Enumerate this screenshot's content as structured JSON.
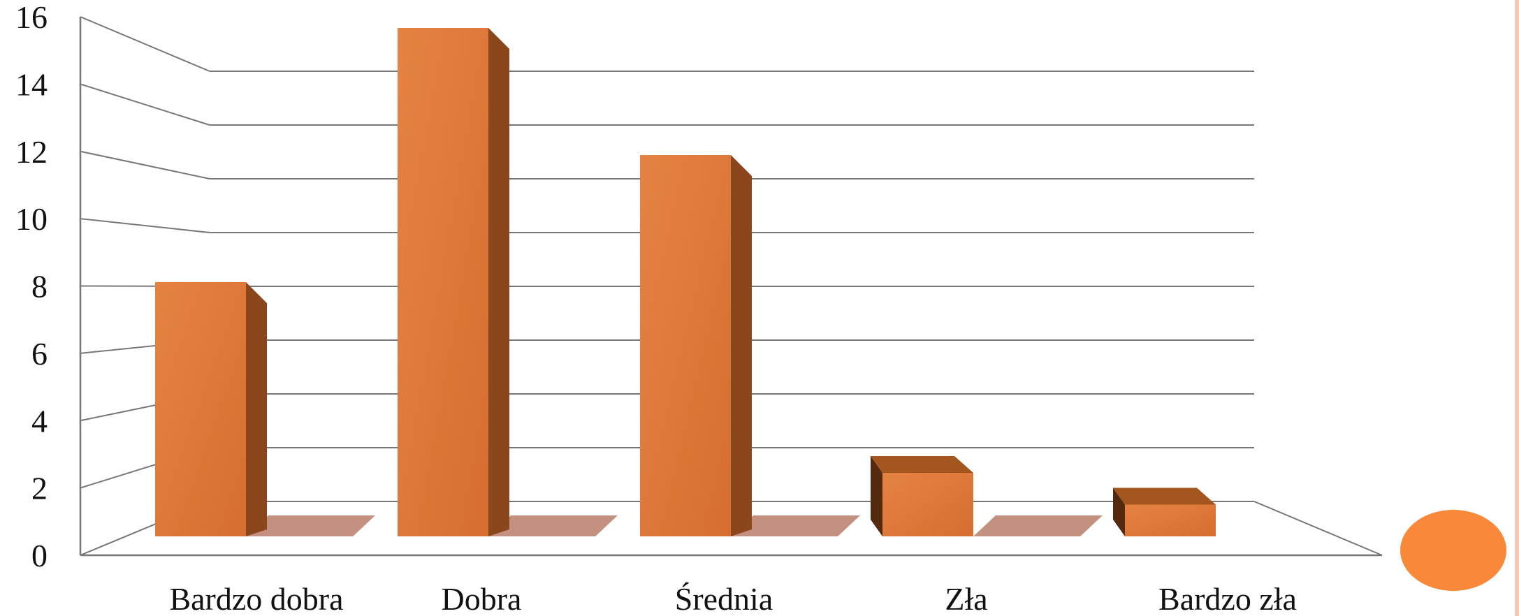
{
  "colors": {
    "bar_front": "#D56E30",
    "bar_front_light": "#E58343",
    "bar_side": "#8A471C",
    "bar_top": "#A4561F",
    "bar_side_left": "#55290E",
    "shadow": "#C49080",
    "grid": "#777777",
    "circle": "#FA883A",
    "stripe": "#F2C7B6"
  },
  "chart_data": {
    "type": "bar",
    "style": "3d-column",
    "categories": [
      "Bardzo dobra",
      "Dobra",
      "Średnia",
      "Zła",
      "Bardzo zła"
    ],
    "values": [
      8,
      16,
      12,
      2,
      1
    ],
    "title": "",
    "xlabel": "",
    "ylabel": "",
    "ylim": [
      0,
      16
    ],
    "yticks": [
      "0",
      "2",
      "4",
      "6",
      "8",
      "10",
      "12",
      "14",
      "16"
    ],
    "grid": true,
    "legend": "none"
  }
}
